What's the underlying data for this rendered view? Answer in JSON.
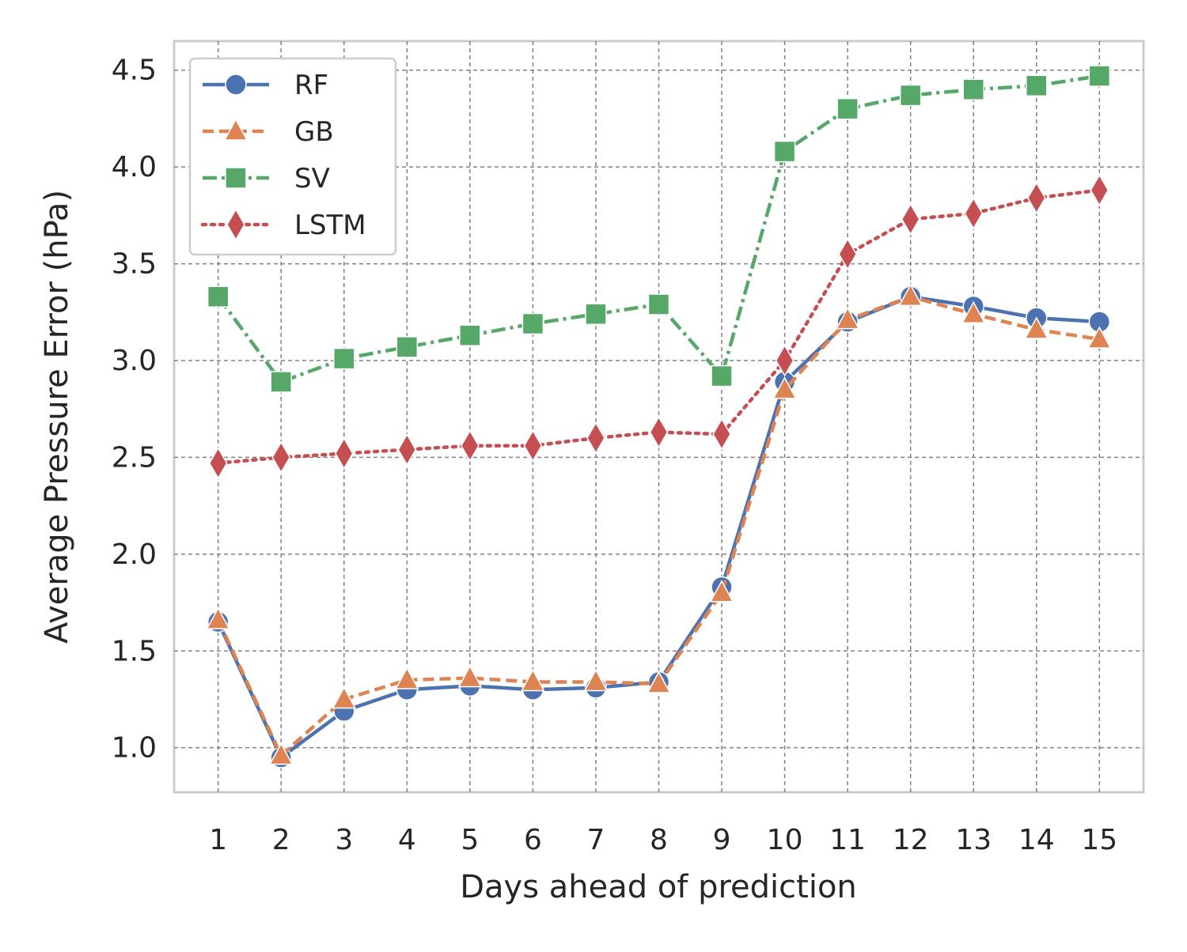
{
  "chart_data": {
    "type": "line",
    "xlabel": "Days ahead of prediction",
    "ylabel": "Average Pressure Error (hPa)",
    "x": [
      1,
      2,
      3,
      4,
      5,
      6,
      7,
      8,
      9,
      10,
      11,
      12,
      13,
      14,
      15
    ],
    "x_tick_labels": [
      "1",
      "2",
      "3",
      "4",
      "5",
      "6",
      "7",
      "8",
      "9",
      "10",
      "11",
      "12",
      "13",
      "14",
      "15"
    ],
    "yticks": [
      "1.0",
      "1.5",
      "2.0",
      "2.5",
      "3.0",
      "3.5",
      "4.0",
      "4.5"
    ],
    "ylim": [
      0.77,
      4.65
    ],
    "grid": true,
    "legend_position": "top-left",
    "series": [
      {
        "name": "RF",
        "color": "#4c72b0",
        "marker": "circle",
        "linestyle": "solid",
        "values": [
          1.65,
          0.95,
          1.19,
          1.3,
          1.32,
          1.3,
          1.31,
          1.34,
          1.83,
          2.89,
          3.2,
          3.33,
          3.28,
          3.22,
          3.2
        ]
      },
      {
        "name": "GB",
        "color": "#dd8452",
        "marker": "triangle",
        "linestyle": "dashed",
        "values": [
          1.66,
          0.96,
          1.25,
          1.35,
          1.36,
          1.34,
          1.34,
          1.33,
          1.8,
          2.85,
          3.21,
          3.33,
          3.24,
          3.16,
          3.11
        ]
      },
      {
        "name": "SV",
        "color": "#55a868",
        "marker": "square",
        "linestyle": "dashdot",
        "values": [
          3.33,
          2.89,
          3.01,
          3.07,
          3.13,
          3.19,
          3.24,
          3.29,
          2.92,
          4.08,
          4.3,
          4.37,
          4.4,
          4.42,
          4.47
        ]
      },
      {
        "name": "LSTM",
        "color": "#c44e52",
        "marker": "diamond",
        "linestyle": "dotted",
        "values": [
          2.47,
          2.5,
          2.52,
          2.54,
          2.56,
          2.56,
          2.6,
          2.63,
          2.62,
          3.0,
          3.55,
          3.73,
          3.76,
          3.84,
          3.88
        ]
      }
    ]
  }
}
